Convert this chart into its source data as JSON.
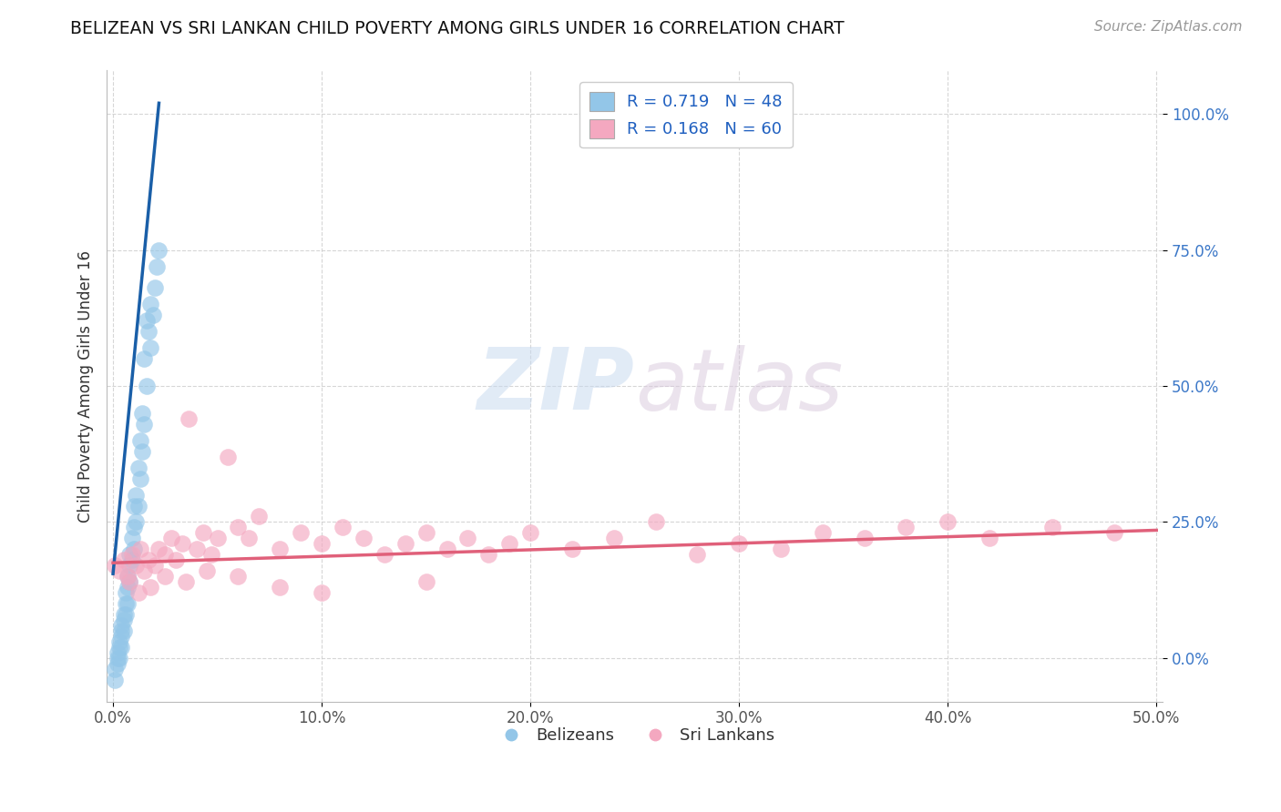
{
  "title": "BELIZEAN VS SRI LANKAN CHILD POVERTY AMONG GIRLS UNDER 16 CORRELATION CHART",
  "source": "Source: ZipAtlas.com",
  "ylabel": "Child Poverty Among Girls Under 16",
  "watermark_zip": "ZIP",
  "watermark_atlas": "atlas",
  "xlim": [
    -0.003,
    0.503
  ],
  "ylim": [
    -0.08,
    1.08
  ],
  "xticks": [
    0.0,
    0.1,
    0.2,
    0.3,
    0.4,
    0.5
  ],
  "xticklabels": [
    "0.0%",
    "10.0%",
    "20.0%",
    "30.0%",
    "40.0%",
    "50.0%"
  ],
  "yticks": [
    0.0,
    0.25,
    0.5,
    0.75,
    1.0
  ],
  "yticklabels": [
    "0.0%",
    "25.0%",
    "50.0%",
    "75.0%",
    "100.0%"
  ],
  "belizean_color": "#93c6e8",
  "srilakan_color": "#f4a8c0",
  "trend_blue": "#1a5fa8",
  "trend_pink": "#e0607a",
  "legend_blue_label": "R = 0.719   N = 48",
  "legend_pink_label": "R = 0.168   N = 60",
  "legend_belizeans": "Belizeans",
  "legend_srilankans": "Sri Lankans",
  "belizean_x": [
    0.001,
    0.001,
    0.002,
    0.002,
    0.002,
    0.003,
    0.003,
    0.003,
    0.004,
    0.004,
    0.004,
    0.004,
    0.005,
    0.005,
    0.005,
    0.006,
    0.006,
    0.006,
    0.007,
    0.007,
    0.007,
    0.008,
    0.008,
    0.008,
    0.009,
    0.009,
    0.01,
    0.01,
    0.01,
    0.011,
    0.011,
    0.012,
    0.012,
    0.013,
    0.013,
    0.014,
    0.014,
    0.015,
    0.015,
    0.016,
    0.016,
    0.017,
    0.018,
    0.018,
    0.019,
    0.02,
    0.021,
    0.022
  ],
  "belizean_y": [
    -0.04,
    -0.02,
    -0.01,
    0.0,
    0.01,
    0.0,
    0.02,
    0.03,
    0.02,
    0.04,
    0.05,
    0.06,
    0.05,
    0.07,
    0.08,
    0.08,
    0.1,
    0.12,
    0.1,
    0.13,
    0.15,
    0.14,
    0.17,
    0.19,
    0.18,
    0.22,
    0.2,
    0.24,
    0.28,
    0.25,
    0.3,
    0.28,
    0.35,
    0.33,
    0.4,
    0.38,
    0.45,
    0.43,
    0.55,
    0.5,
    0.62,
    0.6,
    0.57,
    0.65,
    0.63,
    0.68,
    0.72,
    0.75
  ],
  "srilakan_x": [
    0.001,
    0.003,
    0.005,
    0.007,
    0.009,
    0.011,
    0.013,
    0.015,
    0.017,
    0.02,
    0.022,
    0.025,
    0.028,
    0.03,
    0.033,
    0.036,
    0.04,
    0.043,
    0.047,
    0.05,
    0.055,
    0.06,
    0.065,
    0.07,
    0.08,
    0.09,
    0.1,
    0.11,
    0.12,
    0.13,
    0.14,
    0.15,
    0.16,
    0.17,
    0.18,
    0.19,
    0.2,
    0.22,
    0.24,
    0.26,
    0.28,
    0.3,
    0.32,
    0.34,
    0.36,
    0.38,
    0.4,
    0.42,
    0.45,
    0.48,
    0.008,
    0.012,
    0.018,
    0.025,
    0.035,
    0.045,
    0.06,
    0.08,
    0.1,
    0.15
  ],
  "srilakan_y": [
    0.17,
    0.16,
    0.18,
    0.15,
    0.19,
    0.17,
    0.2,
    0.16,
    0.18,
    0.17,
    0.2,
    0.19,
    0.22,
    0.18,
    0.21,
    0.44,
    0.2,
    0.23,
    0.19,
    0.22,
    0.37,
    0.24,
    0.22,
    0.26,
    0.2,
    0.23,
    0.21,
    0.24,
    0.22,
    0.19,
    0.21,
    0.23,
    0.2,
    0.22,
    0.19,
    0.21,
    0.23,
    0.2,
    0.22,
    0.25,
    0.19,
    0.21,
    0.2,
    0.23,
    0.22,
    0.24,
    0.25,
    0.22,
    0.24,
    0.23,
    0.14,
    0.12,
    0.13,
    0.15,
    0.14,
    0.16,
    0.15,
    0.13,
    0.12,
    0.14
  ],
  "blue_trend_x0": 0.0,
  "blue_trend_y0": 0.155,
  "blue_trend_x1": 0.022,
  "blue_trend_y1": 1.02,
  "pink_trend_x0": 0.0,
  "pink_trend_y0": 0.175,
  "pink_trend_x1": 0.5,
  "pink_trend_y1": 0.235
}
